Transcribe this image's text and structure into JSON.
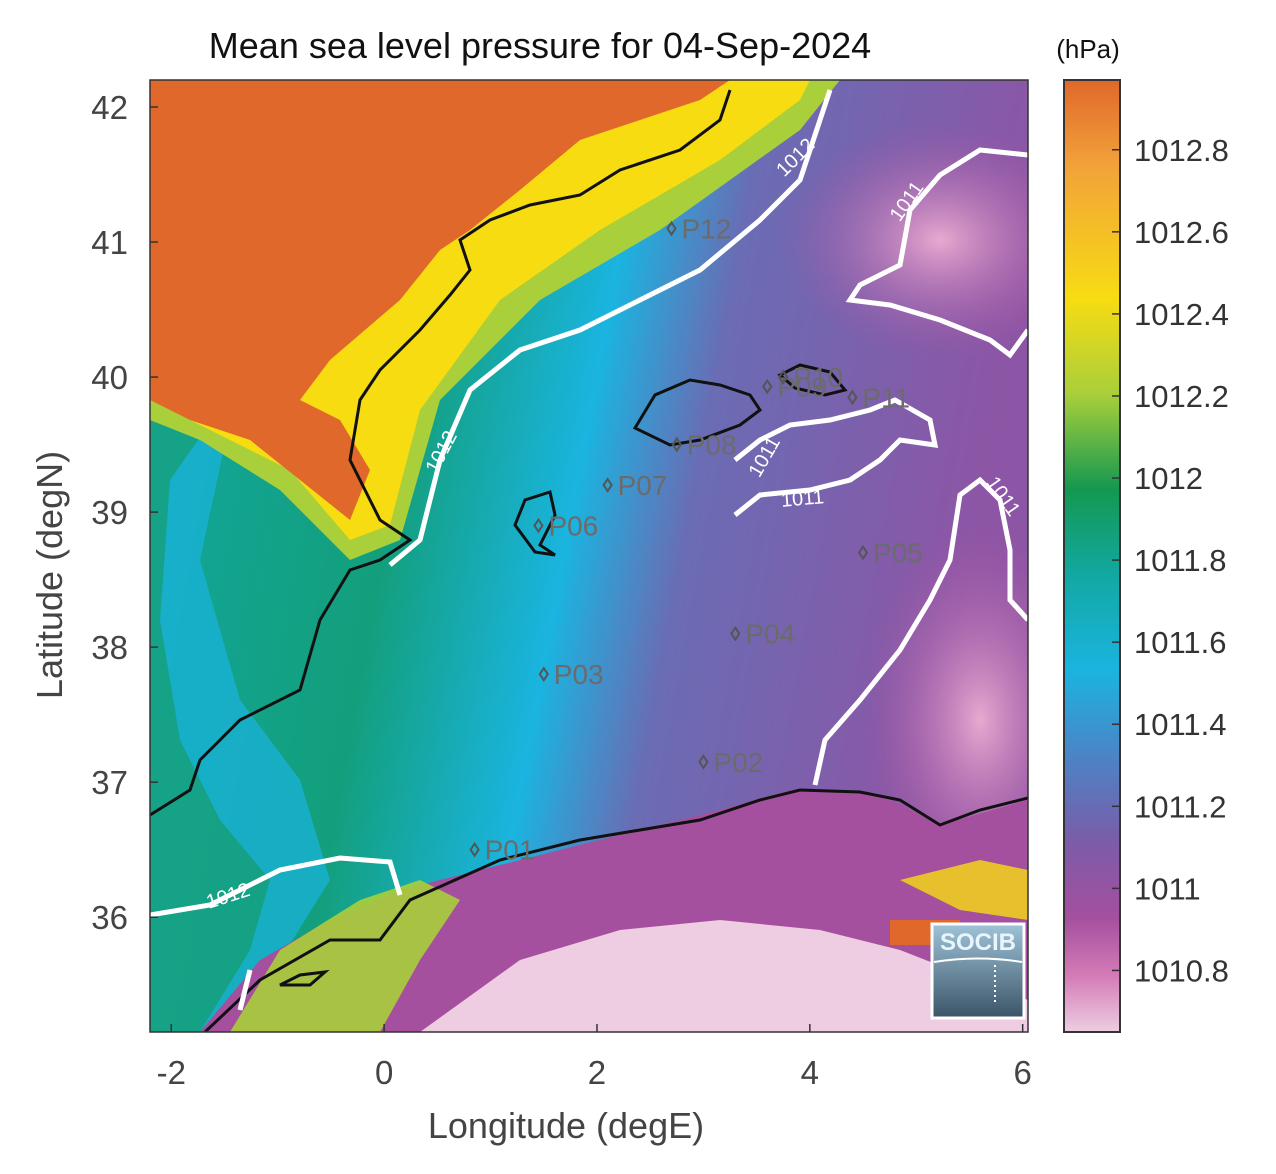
{
  "title": "Mean sea level pressure for 04-Sep-2024",
  "colorbar": {
    "unit": "(hPa)",
    "ticks": [
      "1012.8",
      "1012.6",
      "1012.4",
      "1012.2",
      "1012",
      "1011.8",
      "1011.6",
      "1011.4",
      "1011.2",
      "1011",
      "1010.8"
    ],
    "colors_top_to_bottom": [
      "#e0682a",
      "#f2a23a",
      "#f7dc12",
      "#a9cf3a",
      "#149850",
      "#12a8a2",
      "#1ab4e0",
      "#4b84c6",
      "#7b5ca8",
      "#a54f9f",
      "#d37ab6",
      "#eecde2"
    ]
  },
  "x_axis": {
    "label": "Longitude (degE)",
    "ticks": [
      "-2",
      "0",
      "2",
      "4",
      "6"
    ]
  },
  "y_axis": {
    "label": "Latitude (degN)",
    "ticks": [
      "42",
      "41",
      "40",
      "39",
      "38",
      "37",
      "36"
    ]
  },
  "contours": {
    "labels": [
      "1012",
      "1012",
      "1012",
      "1011",
      "1011",
      "1011",
      "1011"
    ]
  },
  "stations": [
    {
      "id": "P01",
      "lon": 0.85,
      "lat": 36.5
    },
    {
      "id": "P02",
      "lon": 3.0,
      "lat": 37.15
    },
    {
      "id": "P03",
      "lon": 1.5,
      "lat": 37.8
    },
    {
      "id": "P04",
      "lon": 3.3,
      "lat": 38.1
    },
    {
      "id": "P05",
      "lon": 4.5,
      "lat": 38.7
    },
    {
      "id": "P06",
      "lon": 1.45,
      "lat": 38.9
    },
    {
      "id": "P07",
      "lon": 2.1,
      "lat": 39.2
    },
    {
      "id": "P08",
      "lon": 2.75,
      "lat": 39.5
    },
    {
      "id": "P09",
      "lon": 3.6,
      "lat": 39.93
    },
    {
      "id": "P10",
      "lon": 3.75,
      "lat": 40.0
    },
    {
      "id": "P11",
      "lon": 4.4,
      "lat": 39.85
    },
    {
      "id": "P12",
      "lon": 2.7,
      "lat": 41.1
    }
  ],
  "logo": {
    "text": "SOCIB"
  }
}
